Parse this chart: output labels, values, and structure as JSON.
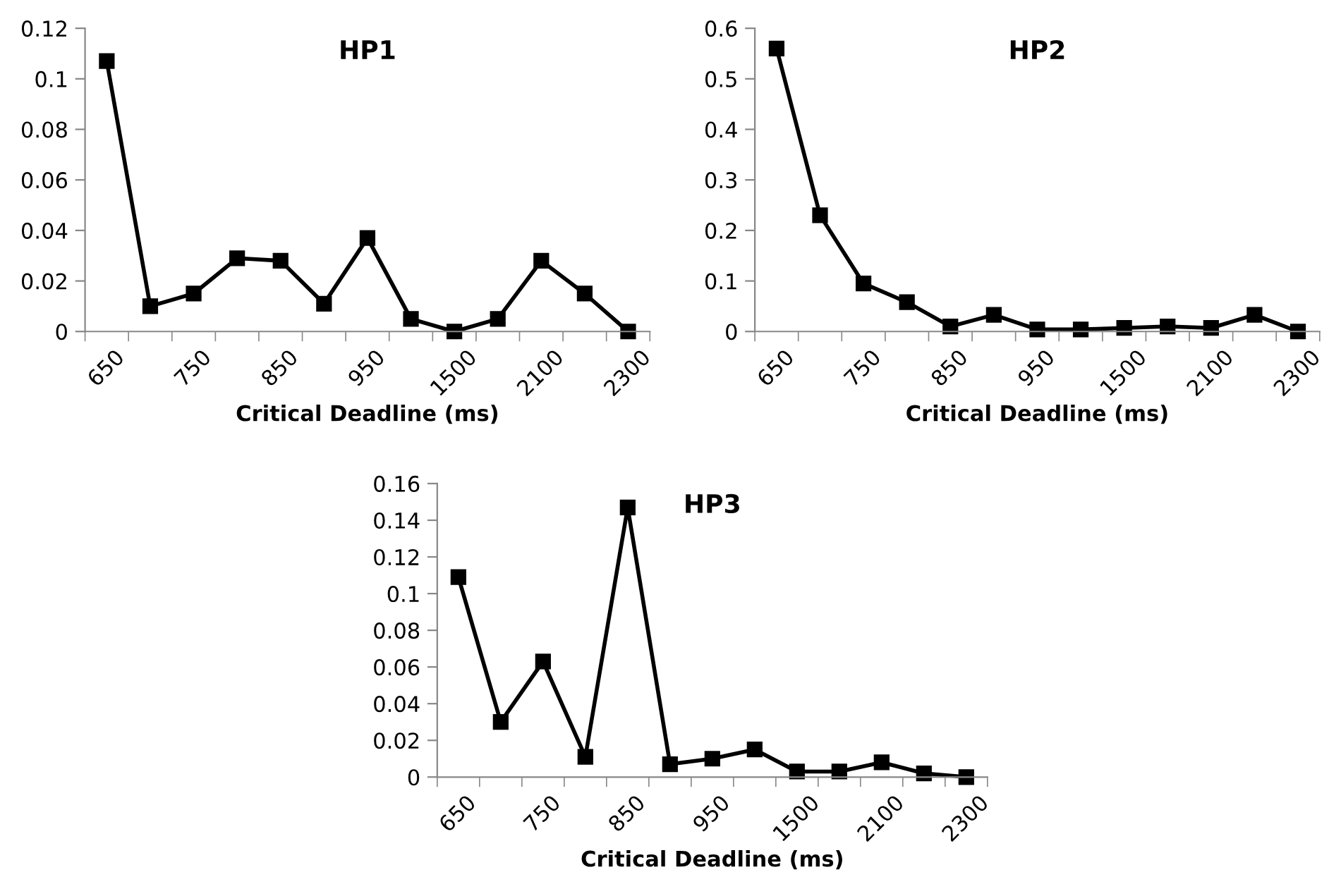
{
  "chart_data": [
    {
      "type": "line",
      "title": "HP1",
      "xlabel": "Critical Deadline (ms)",
      "categories": [
        "650",
        null,
        "750",
        null,
        "850",
        null,
        "950",
        null,
        "1500",
        null,
        "2100",
        null,
        "2300"
      ],
      "series": [
        {
          "color": "#000000",
          "values": [
            0.107,
            0.01,
            0.015,
            0.029,
            0.028,
            0.011,
            0.037,
            0.005,
            0.0,
            0.005,
            0.028,
            0.015,
            0.0
          ]
        }
      ],
      "ylim": [
        0,
        0.12
      ],
      "yticks": [
        0,
        0.02,
        0.04,
        0.06,
        0.08,
        0.1,
        0.12
      ],
      "grid": false,
      "marker": "square",
      "line_style": "solid"
    },
    {
      "type": "line",
      "title": "HP2",
      "xlabel": "Critical Deadline (ms)",
      "categories": [
        "650",
        null,
        "750",
        null,
        "850",
        null,
        "950",
        null,
        "1500",
        null,
        "2100",
        null,
        "2300"
      ],
      "series": [
        {
          "color": "#000000",
          "values": [
            0.56,
            0.23,
            0.095,
            0.058,
            0.01,
            0.033,
            0.004,
            0.004,
            0.007,
            0.01,
            0.007,
            0.033,
            0.0
          ]
        }
      ],
      "ylim": [
        0,
        0.6
      ],
      "yticks": [
        0,
        0.1,
        0.2,
        0.3,
        0.4,
        0.5,
        0.6
      ],
      "grid": false,
      "marker": "square",
      "line_style": "solid"
    },
    {
      "type": "line",
      "title": "HP3",
      "xlabel": "Critical Deadline (ms)",
      "categories": [
        "650",
        null,
        "750",
        null,
        "850",
        null,
        "950",
        null,
        "1500",
        null,
        "2100",
        null,
        "2300"
      ],
      "series": [
        {
          "color": "#000000",
          "values": [
            0.109,
            0.03,
            0.063,
            0.011,
            0.147,
            0.007,
            0.01,
            0.015,
            0.003,
            0.003,
            0.008,
            0.002,
            0.0
          ]
        }
      ],
      "ylim": [
        0,
        0.16
      ],
      "yticks": [
        0,
        0.02,
        0.04,
        0.06,
        0.08,
        0.1,
        0.12,
        0.14,
        0.16
      ],
      "grid": false,
      "marker": "square",
      "line_style": "solid"
    }
  ]
}
